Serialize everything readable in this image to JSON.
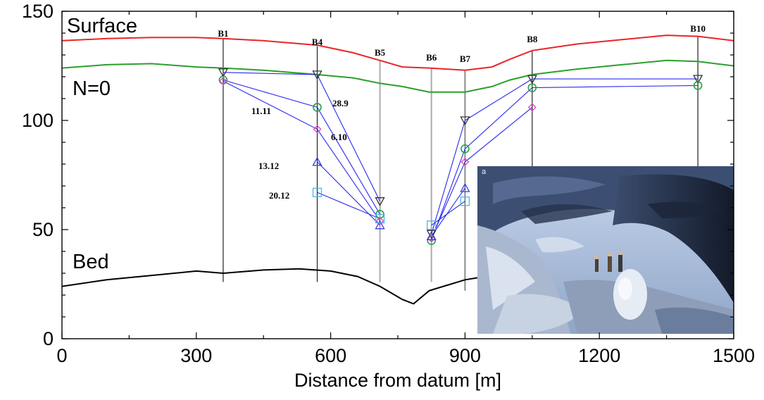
{
  "chart_data": {
    "type": "line",
    "xlabel": "Distance from datum [m]",
    "ylabel": "",
    "xlim": [
      0,
      1500
    ],
    "ylim": [
      0,
      150
    ],
    "x_ticks": [
      "0",
      "300",
      "600",
      "900",
      "1200",
      "1500"
    ],
    "y_ticks": [
      "0",
      "50",
      "100",
      "150"
    ],
    "colors": {
      "surface": "#e8262a",
      "n0": "#2aa02a",
      "bed": "#000000",
      "isochrone": "#2a2aee",
      "borehole": "#333333",
      "tri_down": "#333333",
      "circle": "#21a344",
      "diamond": "#e040c0",
      "tri_up": "#3a3ae6",
      "square": "#48b8e8"
    },
    "lines": [
      {
        "label": "Surface",
        "x": [
          0,
          100,
          200,
          300,
          360,
          450,
          570,
          650,
          710,
          760,
          820,
          900,
          960,
          1000,
          1050,
          1150,
          1250,
          1350,
          1420,
          1500
        ],
        "y": [
          136.5,
          137.5,
          138,
          138,
          137.5,
          136.5,
          134.5,
          131,
          127.5,
          124.5,
          124,
          123,
          124.5,
          128,
          132,
          135,
          137,
          139,
          138.5,
          136.5
        ]
      },
      {
        "label": "N=0",
        "x": [
          0,
          100,
          200,
          300,
          360,
          450,
          570,
          650,
          710,
          760,
          820,
          900,
          960,
          1000,
          1050,
          1150,
          1250,
          1350,
          1420,
          1500
        ],
        "y": [
          124,
          125.5,
          126,
          124.5,
          124,
          123,
          121,
          119.5,
          117,
          115.5,
          113,
          113,
          115.5,
          118.5,
          121,
          123.5,
          125.5,
          127.5,
          127,
          125
        ]
      },
      {
        "label": "Bed",
        "x": [
          0,
          100,
          200,
          300,
          360,
          450,
          530,
          600,
          660,
          710,
          760,
          785,
          820,
          900,
          960,
          1000,
          1050
        ],
        "y": [
          24,
          27,
          29,
          31,
          30,
          31.5,
          32,
          31,
          28.5,
          24,
          18,
          16,
          22,
          27,
          29,
          30.5,
          31
        ]
      }
    ],
    "boreholes": [
      {
        "name": "B1",
        "x": 360,
        "top": 137.5,
        "bottom": 26
      },
      {
        "name": "B4",
        "x": 570,
        "top": 134,
        "bottom": 26
      },
      {
        "name": "B5",
        "x": 710,
        "top": 127.5,
        "bottom": 26
      },
      {
        "name": "B6",
        "x": 825,
        "top": 124,
        "bottom": 26
      },
      {
        "name": "B7",
        "x": 900,
        "top": 123,
        "bottom": 22
      },
      {
        "name": "B8",
        "x": 1050,
        "top": 132,
        "bottom": 28
      },
      {
        "name": "B10",
        "x": 1420,
        "top": 138.5,
        "bottom": 50
      }
    ],
    "isochrones": [
      {
        "name": "28.9",
        "marker": "tri_down",
        "x": [
          360,
          570,
          710,
          null,
          825,
          900,
          1050,
          1420
        ],
        "y": [
          122,
          121,
          63,
          null,
          48,
          100,
          119,
          119
        ]
      },
      {
        "name": "11.11",
        "marker": "circle",
        "x": [
          360,
          570,
          710,
          null,
          825,
          900,
          1050,
          1420
        ],
        "y": [
          118.5,
          106,
          57,
          null,
          45,
          87,
          115,
          116
        ]
      },
      {
        "name": "6.10",
        "marker": "diamond",
        "x": [
          360,
          570,
          710,
          null,
          825,
          900,
          1050
        ],
        "y": [
          118,
          96,
          54,
          null,
          46,
          81,
          106
        ]
      },
      {
        "name": "13.12",
        "marker": "tri_up",
        "x": [
          570,
          710,
          null,
          825,
          900
        ],
        "y": [
          81,
          52,
          null,
          47,
          69
        ]
      },
      {
        "name": "20.12",
        "marker": "square",
        "x": [
          570,
          710,
          null,
          825,
          900
        ],
        "y": [
          67,
          55,
          null,
          52,
          63
        ]
      }
    ],
    "annotations": [
      {
        "text": "28.9"
      },
      {
        "text": "11.11"
      },
      {
        "text": "6.10"
      },
      {
        "text": "13.12"
      },
      {
        "text": "20.12"
      }
    ],
    "inset_photo": {
      "panel_letter": "a",
      "placement": "lower-right"
    }
  }
}
